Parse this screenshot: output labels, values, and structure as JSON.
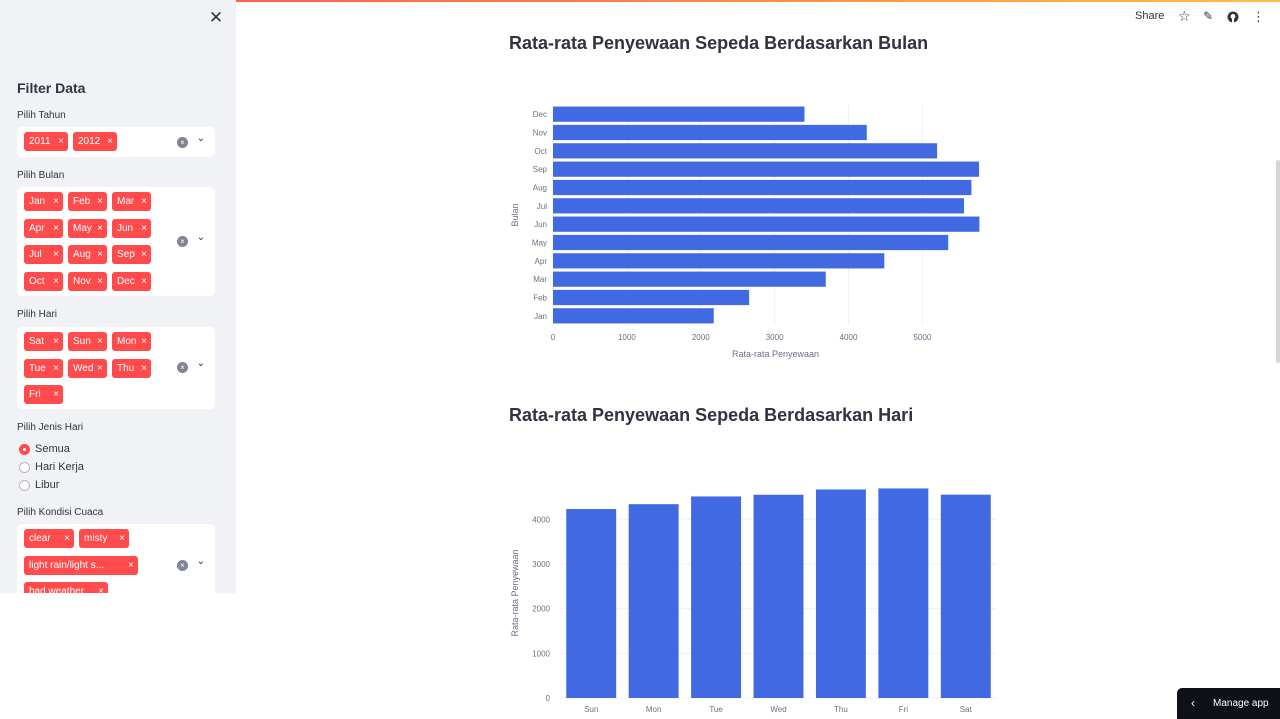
{
  "sidebar": {
    "title": "Filter Data",
    "year": {
      "label": "Pilih Tahun",
      "selected": [
        "2011",
        "2012"
      ]
    },
    "month": {
      "label": "Pilih Bulan",
      "selected": [
        "Jan",
        "Feb",
        "Mar",
        "Apr",
        "May",
        "Jun",
        "Jul",
        "Aug",
        "Sep",
        "Oct",
        "Nov",
        "Dec"
      ]
    },
    "day": {
      "label": "Pilih Hari",
      "selected": [
        "Sat",
        "Sun",
        "Mon",
        "Tue",
        "Wed",
        "Thu",
        "Fri"
      ]
    },
    "daytype": {
      "label": "Pilih Jenis Hari",
      "options": [
        "Semua",
        "Hari Kerja",
        "Libur"
      ],
      "selected": "Semua"
    },
    "weather": {
      "label": "Pilih Kondisi Cuaca",
      "selected": [
        "clear",
        "misty",
        "light rain/light s...",
        "bad weather"
      ]
    },
    "tag_remove": "×",
    "close_icon": "✕",
    "clear_icon": "×",
    "chevron_icon": "⌄"
  },
  "toolbar": {
    "share": "Share",
    "star_icon": "☆",
    "edit_icon": "✎",
    "github_icon": "github",
    "menu_icon": "⋮"
  },
  "main": {
    "chart1_title": "Rata-rata Penyewaan Sepeda Berdasarkan Bulan",
    "chart2_title": "Rata-rata Penyewaan Sepeda Berdasarkan Hari"
  },
  "manage_app": {
    "label": "Manage app",
    "chevron": "‹"
  },
  "colors": {
    "accent": "#ff4b4b",
    "bar": "#4169e1",
    "sidebar_bg": "#f0f2f6"
  },
  "chart_data": [
    {
      "type": "bar",
      "orientation": "horizontal",
      "categories": [
        "Jan",
        "Feb",
        "Mar",
        "Apr",
        "May",
        "Jun",
        "Jul",
        "Aug",
        "Sep",
        "Oct",
        "Nov",
        "Dec"
      ],
      "values": [
        2176,
        2655,
        3692,
        4485,
        5350,
        5772,
        5564,
        5664,
        5767,
        5199,
        4247,
        3404
      ],
      "title": "Rata-rata Penyewaan Sepeda Berdasarkan Bulan",
      "xlabel": "Rata-rata Penyewaan",
      "ylabel": "Bulan",
      "xlim": [
        0,
        5780
      ],
      "xticks": [
        0,
        1000,
        2000,
        3000,
        4000,
        5000
      ],
      "grid": true
    },
    {
      "type": "bar",
      "orientation": "vertical",
      "categories": [
        "Sun",
        "Mon",
        "Tue",
        "Wed",
        "Thu",
        "Fri",
        "Sat"
      ],
      "values": [
        4229,
        4338,
        4511,
        4549,
        4667,
        4690,
        4551
      ],
      "title": "Rata-rata Penyewaan Sepeda Berdasarkan Hari",
      "xlabel": "",
      "ylabel": "Rata-rata Penyewaan",
      "ylim": [
        0,
        4700
      ],
      "yticks": [
        0,
        1000,
        2000,
        3000,
        4000
      ],
      "grid": true
    }
  ]
}
